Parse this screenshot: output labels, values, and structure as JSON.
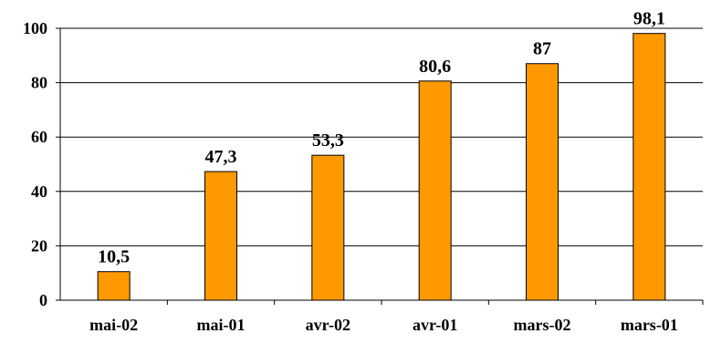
{
  "chart_data": {
    "type": "bar",
    "categories": [
      "mai-02",
      "mai-01",
      "avr-02",
      "avr-01",
      "mars-02",
      "mars-01"
    ],
    "values": [
      10.5,
      47.3,
      53.3,
      80.6,
      87,
      98.1
    ],
    "data_labels": [
      "10,5",
      "47,3",
      "53,3",
      "80,6",
      "87",
      "98,1"
    ],
    "y_ticks": [
      0,
      20,
      40,
      60,
      80,
      100
    ],
    "ylim": [
      0,
      100
    ],
    "grid": true,
    "legend": "none",
    "colors": {
      "bar_fill": "#FF9900",
      "bar_stroke": "#000000",
      "grid": "#000000",
      "text": "#000000"
    }
  }
}
